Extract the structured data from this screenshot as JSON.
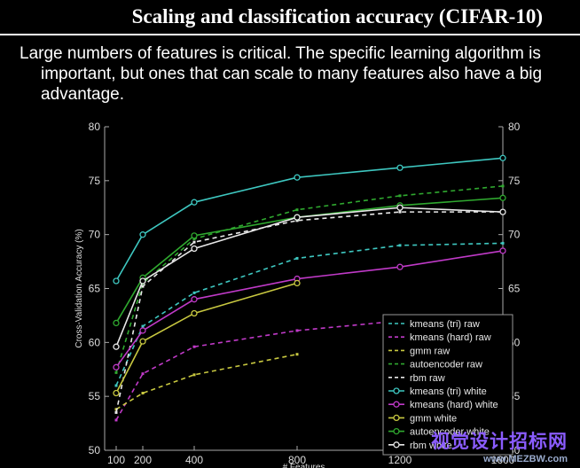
{
  "slide": {
    "title": "Scaling and classification accuracy (CIFAR-10)",
    "body_line1": "Large numbers of features is critical. The specific learning algorithm is",
    "body_line2": "important, but ones that can scale to many features also have a big",
    "body_line3": "advantage."
  },
  "watermark": {
    "line1": "视觉设计招标网",
    "line2": "www.MEZBW.com"
  },
  "chart_data": {
    "type": "line",
    "xlabel": "# Features",
    "ylabel": "Cross-Validation Accuracy (%)",
    "x_ticks": [
      100,
      200,
      400,
      800,
      1200,
      1600
    ],
    "y_ticks": [
      50,
      55,
      60,
      65,
      70,
      75,
      80
    ],
    "xlim": [
      100,
      1600
    ],
    "ylim": [
      50,
      80
    ],
    "grid": false,
    "legend_position": "bottom-right",
    "series": [
      {
        "name": "kmeans (tri) raw",
        "style": "dashed",
        "color": "#3ec7c0",
        "marker": "none",
        "x": [
          100,
          200,
          400,
          800,
          1200,
          1600
        ],
        "y": [
          56.0,
          61.5,
          64.6,
          67.8,
          69.0,
          69.2
        ]
      },
      {
        "name": "kmeans (hard) raw",
        "style": "dashed",
        "color": "#c03ac8",
        "marker": "none",
        "x": [
          100,
          200,
          400,
          800,
          1200
        ],
        "y": [
          52.8,
          57.1,
          59.6,
          61.1,
          62.0
        ]
      },
      {
        "name": "gmm raw",
        "style": "dashed",
        "color": "#c8c840",
        "marker": "none",
        "x": [
          100,
          200,
          400,
          800
        ],
        "y": [
          53.8,
          55.3,
          57.0,
          58.9
        ]
      },
      {
        "name": "autoencoder raw",
        "style": "dashed",
        "color": "#2fa82f",
        "marker": "none",
        "x": [
          100,
          200,
          400,
          800,
          1200,
          1600
        ],
        "y": [
          57.2,
          65.5,
          69.6,
          72.3,
          73.6,
          74.5
        ]
      },
      {
        "name": "rbm raw",
        "style": "dashed",
        "color": "#e8e8e8",
        "marker": "none",
        "x": [
          100,
          200,
          400,
          800,
          1200,
          1600
        ],
        "y": [
          53.5,
          65.2,
          69.3,
          71.3,
          72.1,
          72.1
        ]
      },
      {
        "name": "kmeans (tri) white",
        "style": "solid",
        "color": "#3ec7c0",
        "marker": "circle",
        "x": [
          100,
          200,
          400,
          800,
          1200,
          1600
        ],
        "y": [
          65.7,
          70.0,
          73.0,
          75.3,
          76.2,
          77.1
        ]
      },
      {
        "name": "kmeans (hard) white",
        "style": "solid",
        "color": "#c03ac8",
        "marker": "circle",
        "x": [
          100,
          200,
          400,
          800,
          1200,
          1600
        ],
        "y": [
          57.7,
          61.1,
          64.0,
          65.9,
          67.0,
          68.5
        ]
      },
      {
        "name": "gmm white",
        "style": "solid",
        "color": "#c8c840",
        "marker": "circle",
        "x": [
          100,
          200,
          400,
          800
        ],
        "y": [
          55.3,
          60.1,
          62.7,
          65.5
        ]
      },
      {
        "name": "autoencoder white",
        "style": "solid",
        "color": "#2fa82f",
        "marker": "circle",
        "x": [
          100,
          200,
          400,
          800,
          1200,
          1600
        ],
        "y": [
          61.8,
          66.0,
          69.9,
          71.6,
          72.7,
          73.4
        ]
      },
      {
        "name": "rbm white",
        "style": "solid",
        "color": "#e8e8e8",
        "marker": "circle",
        "x": [
          100,
          200,
          400,
          800,
          1200,
          1600
        ],
        "y": [
          59.6,
          65.7,
          68.7,
          71.6,
          72.5,
          72.1
        ]
      }
    ]
  }
}
